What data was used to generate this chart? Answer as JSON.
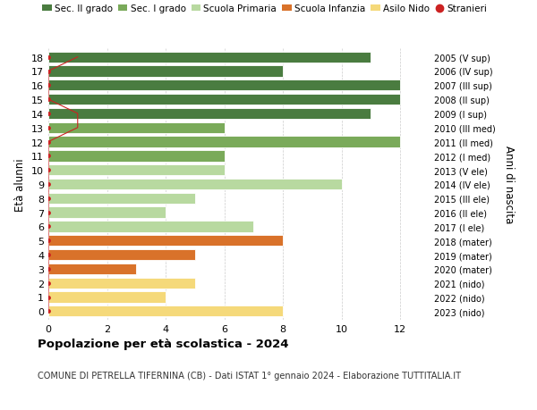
{
  "ages": [
    18,
    17,
    16,
    15,
    14,
    13,
    12,
    11,
    10,
    9,
    8,
    7,
    6,
    5,
    4,
    3,
    2,
    1,
    0
  ],
  "right_labels": [
    "2005 (V sup)",
    "2006 (IV sup)",
    "2007 (III sup)",
    "2008 (II sup)",
    "2009 (I sup)",
    "2010 (III med)",
    "2011 (II med)",
    "2012 (I med)",
    "2013 (V ele)",
    "2014 (IV ele)",
    "2015 (III ele)",
    "2016 (II ele)",
    "2017 (I ele)",
    "2018 (mater)",
    "2019 (mater)",
    "2020 (mater)",
    "2021 (nido)",
    "2022 (nido)",
    "2023 (nido)"
  ],
  "bar_values": [
    11,
    8,
    12,
    12,
    11,
    6,
    12,
    6,
    6,
    10,
    5,
    4,
    7,
    8,
    5,
    3,
    5,
    4,
    8
  ],
  "bar_colors": [
    "#4a7c40",
    "#4a7c40",
    "#4a7c40",
    "#4a7c40",
    "#4a7c40",
    "#7aaa5a",
    "#7aaa5a",
    "#7aaa5a",
    "#b8d9a0",
    "#b8d9a0",
    "#b8d9a0",
    "#b8d9a0",
    "#b8d9a0",
    "#d9722a",
    "#d9722a",
    "#d9722a",
    "#f5d97a",
    "#f5d97a",
    "#f5d97a"
  ],
  "stranieri_values": [
    1,
    0,
    0,
    0,
    1,
    1,
    0,
    0,
    0,
    0,
    0,
    0,
    0,
    0,
    0,
    0,
    0,
    0,
    0
  ],
  "xlim": [
    0,
    13
  ],
  "xticks": [
    0,
    2,
    4,
    6,
    8,
    10,
    12
  ],
  "ylabel_left": "Età alunni",
  "ylabel_right": "Anni di nascita",
  "title": "Popolazione per età scolastica - 2024",
  "subtitle": "COMUNE DI PETRELLA TIFERNINA (CB) - Dati ISTAT 1° gennaio 2024 - Elaborazione TUTTITALIA.IT",
  "legend_items": [
    {
      "label": "Sec. II grado",
      "color": "#4a7c40"
    },
    {
      "label": "Sec. I grado",
      "color": "#7aaa5a"
    },
    {
      "label": "Scuola Primaria",
      "color": "#b8d9a0"
    },
    {
      "label": "Scuola Infanzia",
      "color": "#d9722a"
    },
    {
      "label": "Asilo Nido",
      "color": "#f5d97a"
    },
    {
      "label": "Stranieri",
      "color": "#cc2222"
    }
  ],
  "bg_color": "#ffffff",
  "grid_color": "#cccccc",
  "bar_edge_color": "#ffffff",
  "bar_height": 0.78
}
